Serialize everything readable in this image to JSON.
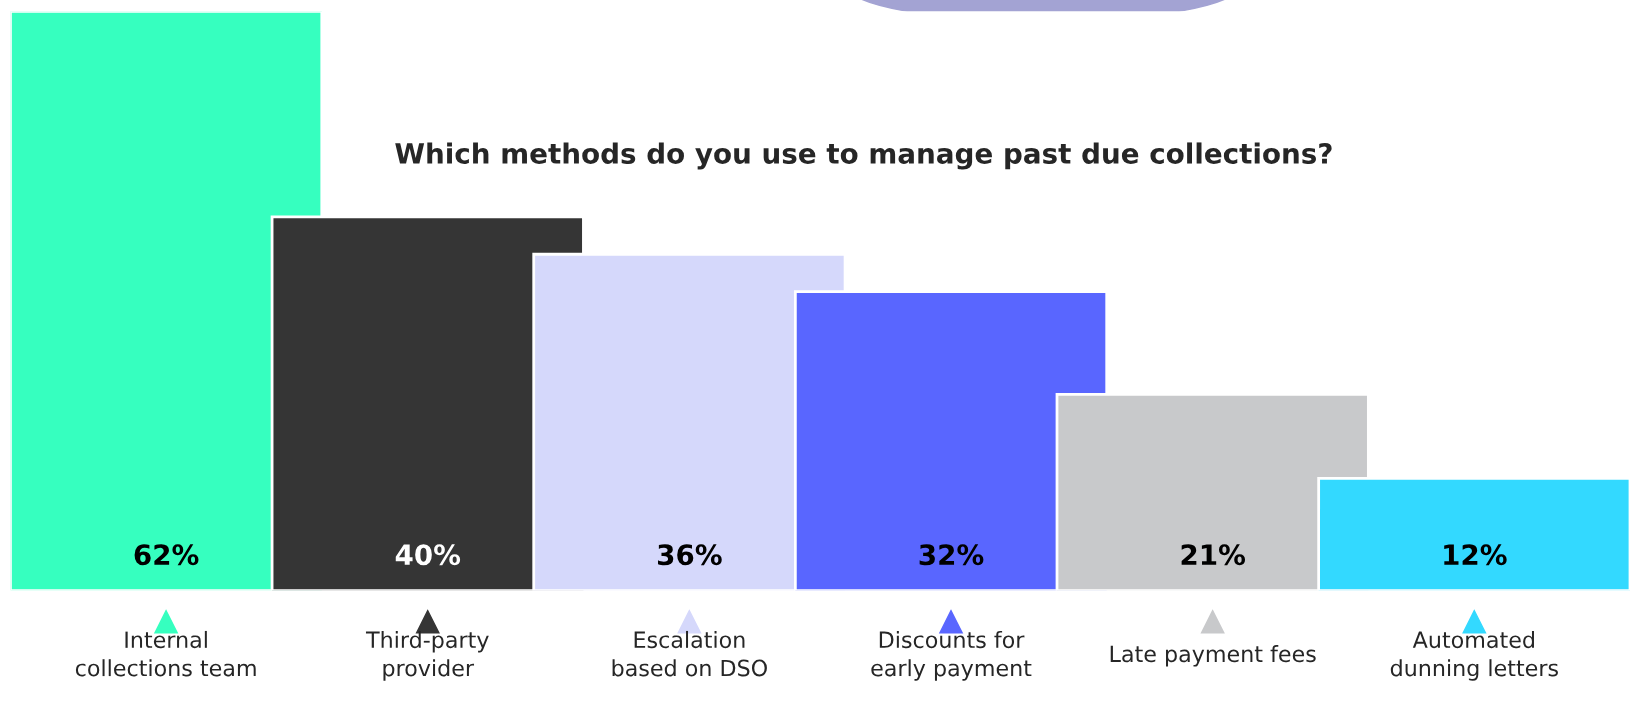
{
  "chart_data": {
    "type": "bar",
    "title": "Which methods do you use to manage past due collections?",
    "categories": [
      "Internal\ncollections team",
      "Third-party\nprovider",
      "Escalation\nbased on DSO",
      "Discounts for\nearly payment",
      "Late payment fees",
      "Automated\ndunning letters"
    ],
    "values": [
      62,
      40,
      36,
      32,
      21,
      12
    ],
    "colors": [
      "#36ffbf",
      "#353535",
      "#d5d8fb",
      "#5966ff",
      "#c8c9cb",
      "#33d9ff"
    ],
    "value_labels": [
      "62%",
      "40%",
      "36%",
      "32%",
      "21%",
      "12%"
    ],
    "legend": false
  }
}
